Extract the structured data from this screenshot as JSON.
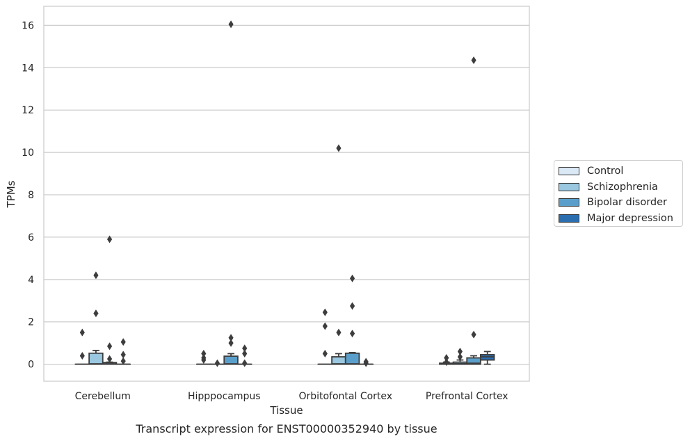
{
  "chart_data": {
    "type": "box",
    "title": "Transcript expression for ENST00000352940 by tissue",
    "xlabel": "Tissue",
    "ylabel": "TPMs",
    "ylim": [
      -0.8,
      16.9
    ],
    "yticks": [
      0,
      2,
      4,
      6,
      8,
      10,
      12,
      14,
      16
    ],
    "grid": "horizontal",
    "legend_placement": "right",
    "categories": [
      "Cerebellum",
      "Hipppocampus",
      "Orbitofontal Cortex",
      "Prefrontal Cortex"
    ],
    "series": [
      {
        "name": "Control",
        "color": "#dbe9f6",
        "boxes": [
          {
            "q1": 0,
            "median": 0,
            "q3": 0,
            "whisker_low": 0,
            "whisker_high": 0,
            "outliers": [
              0.4,
              1.5
            ]
          },
          {
            "q1": 0,
            "median": 0,
            "q3": 0,
            "whisker_low": 0,
            "whisker_high": 0,
            "outliers": [
              0.2,
              0.3,
              0.5
            ]
          },
          {
            "q1": 0,
            "median": 0,
            "q3": 0,
            "whisker_low": 0,
            "whisker_high": 0,
            "outliers": [
              0.5,
              1.8,
              2.45
            ]
          },
          {
            "q1": 0,
            "median": 0,
            "q3": 0.05,
            "whisker_low": 0,
            "whisker_high": 0.1,
            "outliers": [
              0.1,
              0.3
            ]
          }
        ]
      },
      {
        "name": "Schizophrenia",
        "color": "#9ac8e0",
        "boxes": [
          {
            "q1": 0,
            "median": 0.02,
            "q3": 0.52,
            "whisker_low": 0,
            "whisker_high": 0.65,
            "outliers": [
              2.4,
              4.2
            ]
          },
          {
            "q1": 0,
            "median": 0,
            "q3": 0,
            "whisker_low": 0,
            "whisker_high": 0,
            "outliers": [
              0.05
            ]
          },
          {
            "q1": 0,
            "median": 0.02,
            "q3": 0.35,
            "whisker_low": 0,
            "whisker_high": 0.5,
            "outliers": [
              1.5,
              10.2
            ]
          },
          {
            "q1": 0,
            "median": 0.03,
            "q3": 0.1,
            "whisker_low": 0,
            "whisker_high": 0.2,
            "outliers": [
              0.35,
              0.6
            ]
          }
        ]
      },
      {
        "name": "Bipolar disorder",
        "color": "#5a9fcb",
        "boxes": [
          {
            "q1": 0,
            "median": 0.02,
            "q3": 0.08,
            "whisker_low": 0,
            "whisker_high": 0.1,
            "outliers": [
              0.25,
              0.85,
              5.9
            ]
          },
          {
            "q1": 0,
            "median": 0.02,
            "q3": 0.38,
            "whisker_low": 0,
            "whisker_high": 0.5,
            "outliers": [
              1.0,
              1.25,
              16.05
            ]
          },
          {
            "q1": 0,
            "median": 0.02,
            "q3": 0.52,
            "whisker_low": 0,
            "whisker_high": 0.55,
            "outliers": [
              1.45,
              2.75,
              4.05
            ]
          },
          {
            "q1": 0,
            "median": 0.05,
            "q3": 0.3,
            "whisker_low": 0,
            "whisker_high": 0.4,
            "outliers": [
              1.4,
              14.35
            ]
          }
        ]
      },
      {
        "name": "Major depression",
        "color": "#2a6eb0",
        "boxes": [
          {
            "q1": 0,
            "median": 0,
            "q3": 0,
            "whisker_low": 0,
            "whisker_high": 0,
            "outliers": [
              0.15,
              0.45,
              1.05
            ]
          },
          {
            "q1": 0,
            "median": 0,
            "q3": 0,
            "whisker_low": 0,
            "whisker_high": 0,
            "outliers": [
              0.05,
              0.5,
              0.75
            ]
          },
          {
            "q1": 0,
            "median": 0,
            "q3": 0,
            "whisker_low": 0,
            "whisker_high": 0,
            "outliers": [
              0.05,
              0.12
            ]
          },
          {
            "q1": 0.2,
            "median": 0.35,
            "q3": 0.45,
            "whisker_low": 0,
            "whisker_high": 0.6,
            "outliers": []
          }
        ]
      }
    ]
  }
}
